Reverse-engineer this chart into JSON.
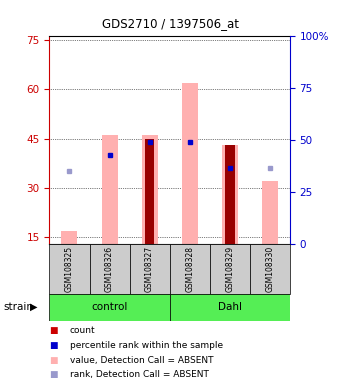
{
  "title": "GDS2710 / 1397506_at",
  "samples": [
    "GSM108325",
    "GSM108326",
    "GSM108327",
    "GSM108328",
    "GSM108329",
    "GSM108330"
  ],
  "ylim_left": [
    13,
    76
  ],
  "ylim_right": [
    0,
    100
  ],
  "yticks_left": [
    15,
    30,
    45,
    60,
    75
  ],
  "yticks_right": [
    0,
    25,
    50,
    75,
    100
  ],
  "pink_bars": [
    17,
    46,
    46,
    62,
    43,
    32
  ],
  "dark_red_bars": [
    0,
    0,
    45,
    0,
    43,
    0
  ],
  "blue_sq_y_left": [
    35,
    40,
    44,
    44,
    36,
    36
  ],
  "blue_sq_present": [
    false,
    true,
    true,
    true,
    true,
    false
  ],
  "left_yaxis_color": "#cc0000",
  "right_yaxis_color": "#0000cc",
  "bar_color_pink": "#ffb0b0",
  "bar_color_darkred": "#990000",
  "square_color_blue": "#0000cc",
  "square_color_lavender": "#9999cc",
  "group_row_color": "#55ee55",
  "sample_row_color": "#cccccc",
  "control_label": "control",
  "dahl_label": "Dahl",
  "strain_label": "strain",
  "legend_items": [
    {
      "label": "count",
      "color": "#cc0000"
    },
    {
      "label": "percentile rank within the sample",
      "color": "#0000cc"
    },
    {
      "label": "value, Detection Call = ABSENT",
      "color": "#ffb0b0"
    },
    {
      "label": "rank, Detection Call = ABSENT",
      "color": "#9999cc"
    }
  ]
}
